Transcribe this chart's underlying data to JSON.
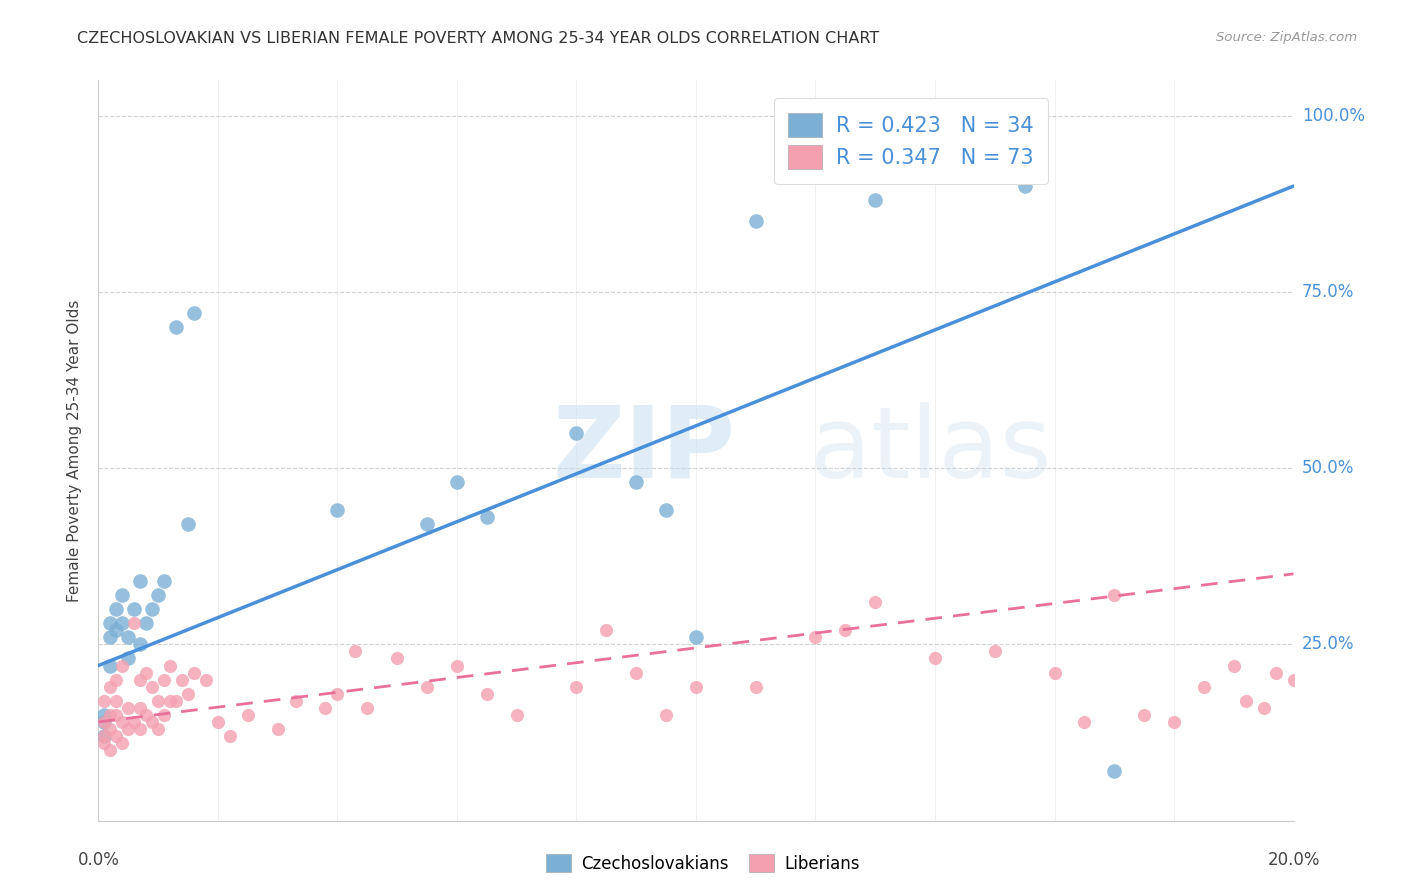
{
  "title": "CZECHOSLOVAKIAN VS LIBERIAN FEMALE POVERTY AMONG 25-34 YEAR OLDS CORRELATION CHART",
  "source": "Source: ZipAtlas.com",
  "ylabel": "Female Poverty Among 25-34 Year Olds",
  "czech_color": "#7bafd4",
  "liberian_color": "#f4a0b0",
  "czech_line_color": "#4a90d9",
  "liberian_line_color": "#e8709a",
  "legend_czech_label": "R = 0.423   N = 34",
  "legend_liberian_label": "R = 0.347   N = 73",
  "watermark_zip": "ZIP",
  "watermark_atlas": "atlas",
  "czech_x": [
    0.001,
    0.001,
    0.001,
    0.002,
    0.002,
    0.002,
    0.003,
    0.003,
    0.004,
    0.004,
    0.005,
    0.005,
    0.006,
    0.007,
    0.007,
    0.008,
    0.009,
    0.01,
    0.011,
    0.013,
    0.015,
    0.016,
    0.04,
    0.055,
    0.06,
    0.065,
    0.08,
    0.09,
    0.095,
    0.1,
    0.11,
    0.13,
    0.155,
    0.17
  ],
  "czech_y": [
    0.12,
    0.15,
    0.14,
    0.22,
    0.26,
    0.28,
    0.3,
    0.27,
    0.28,
    0.32,
    0.23,
    0.26,
    0.3,
    0.25,
    0.34,
    0.28,
    0.3,
    0.32,
    0.34,
    0.7,
    0.42,
    0.72,
    0.44,
    0.42,
    0.48,
    0.43,
    0.55,
    0.48,
    0.44,
    0.26,
    0.85,
    0.88,
    0.9,
    0.07
  ],
  "liberian_x": [
    0.001,
    0.001,
    0.001,
    0.001,
    0.002,
    0.002,
    0.002,
    0.002,
    0.003,
    0.003,
    0.003,
    0.003,
    0.004,
    0.004,
    0.004,
    0.005,
    0.005,
    0.006,
    0.006,
    0.007,
    0.007,
    0.007,
    0.008,
    0.008,
    0.009,
    0.009,
    0.01,
    0.01,
    0.011,
    0.011,
    0.012,
    0.012,
    0.013,
    0.014,
    0.015,
    0.016,
    0.018,
    0.02,
    0.022,
    0.025,
    0.03,
    0.033,
    0.038,
    0.04,
    0.043,
    0.045,
    0.05,
    0.055,
    0.06,
    0.065,
    0.07,
    0.08,
    0.085,
    0.09,
    0.095,
    0.1,
    0.11,
    0.12,
    0.125,
    0.13,
    0.14,
    0.15,
    0.16,
    0.165,
    0.17,
    0.175,
    0.18,
    0.185,
    0.19,
    0.192,
    0.195,
    0.197,
    0.2
  ],
  "liberian_y": [
    0.12,
    0.11,
    0.14,
    0.17,
    0.1,
    0.13,
    0.15,
    0.19,
    0.12,
    0.15,
    0.17,
    0.2,
    0.11,
    0.14,
    0.22,
    0.13,
    0.16,
    0.14,
    0.28,
    0.13,
    0.16,
    0.2,
    0.15,
    0.21,
    0.14,
    0.19,
    0.13,
    0.17,
    0.15,
    0.2,
    0.17,
    0.22,
    0.17,
    0.2,
    0.18,
    0.21,
    0.2,
    0.14,
    0.12,
    0.15,
    0.13,
    0.17,
    0.16,
    0.18,
    0.24,
    0.16,
    0.23,
    0.19,
    0.22,
    0.18,
    0.15,
    0.19,
    0.27,
    0.21,
    0.15,
    0.19,
    0.19,
    0.26,
    0.27,
    0.31,
    0.23,
    0.24,
    0.21,
    0.14,
    0.32,
    0.15,
    0.14,
    0.19,
    0.22,
    0.17,
    0.16,
    0.21,
    0.2
  ],
  "xlim": [
    0.0,
    0.2
  ],
  "ylim": [
    0.0,
    1.05
  ],
  "czech_line_x0": 0.0,
  "czech_line_y0": 0.22,
  "czech_line_x1": 0.2,
  "czech_line_y1": 0.9,
  "liberian_line_x0": 0.0,
  "liberian_line_y0": 0.14,
  "liberian_line_x1": 0.2,
  "liberian_line_y1": 0.35
}
